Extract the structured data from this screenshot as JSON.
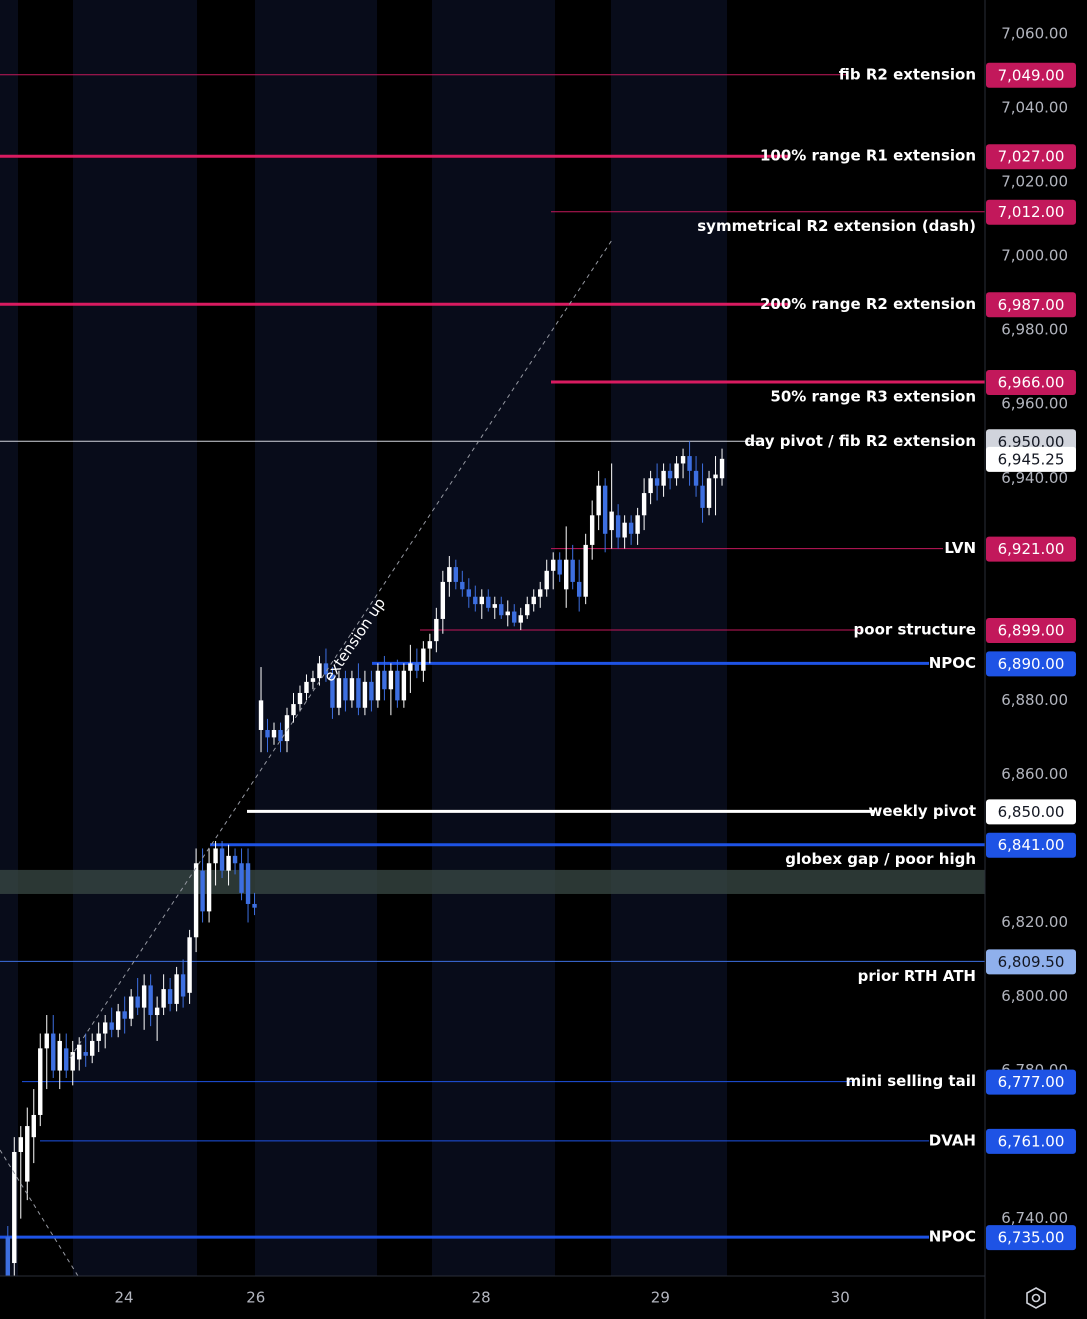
{
  "chart_data": {
    "type": "candlestick",
    "up_color": "#ffffff",
    "down_color": "#3d6fe0",
    "ylim": [
      6724.5,
      7069.2
    ],
    "yticks": [
      {
        "value": 7060,
        "label": "7,060.00"
      },
      {
        "value": 7040,
        "label": "7,040.00"
      },
      {
        "value": 7020,
        "label": "7,020.00"
      },
      {
        "value": 7000,
        "label": "7,000.00"
      },
      {
        "value": 6980,
        "label": "6,980.00"
      },
      {
        "value": 6960,
        "label": "6,960.00"
      },
      {
        "value": 6940,
        "label": "6,940.00"
      },
      {
        "value": 6880,
        "label": "6,880.00"
      },
      {
        "value": 6860,
        "label": "6,860.00"
      },
      {
        "value": 6820,
        "label": "6,820.00"
      },
      {
        "value": 6800,
        "label": "6,800.00"
      },
      {
        "value": 6780,
        "label": "6,780.00"
      },
      {
        "value": 6740,
        "label": "6,740.00"
      }
    ],
    "xlim": [
      -1.2,
      150.5
    ],
    "xticks": [
      {
        "value": 17.9,
        "label": "24"
      },
      {
        "value": 38.2,
        "label": "26"
      },
      {
        "value": 72.9,
        "label": "28"
      },
      {
        "value": 100.5,
        "label": "29"
      },
      {
        "value": 128.2,
        "label": "30"
      }
    ],
    "levels": [
      {
        "name": "fib R2 extension",
        "value": 7049,
        "value_label": "7,049.00",
        "color": "#c2185b",
        "label_color": "#c2185b"
      },
      {
        "name": "100% range R1 extension",
        "value": 7027,
        "value_label": "7,027.00",
        "color": "#d81b60",
        "label_color": "#c2185b"
      },
      {
        "name": "symmetrical R2 extension (dash)",
        "value": 7012,
        "value_label": "7,012.00",
        "color": "#c2185b",
        "label_color": "#c2185b"
      },
      {
        "name": "200% range R2 extension",
        "value": 6987,
        "value_label": "6,987.00",
        "color": "#d81b60",
        "label_color": "#c2185b"
      },
      {
        "name": "50% range R3 extension",
        "value": 6966,
        "value_label": "6,966.00",
        "color": "#d81b60",
        "label_color": "#c2185b"
      },
      {
        "name": "day pivot / fib R2 extension",
        "value": 6950,
        "value_label": "6,950.00",
        "color": "#d1d4dc",
        "label_color": "#d1d4dc"
      },
      {
        "name": "LVN",
        "value": 6921,
        "value_label": "6,921.00",
        "color": "#c2185b",
        "label_color": "#c2185b"
      },
      {
        "name": "poor structure",
        "value": 6899,
        "value_label": "6,899.00",
        "color": "#c2185b",
        "label_color": "#c2185b"
      },
      {
        "name": "NPOC",
        "value": 6890,
        "value_label": "6,890.00",
        "color": "#1e53e5",
        "label_color": "#1e53e5"
      },
      {
        "name": "weekly pivot",
        "value": 6850,
        "value_label": "6,850.00",
        "color": "#ffffff",
        "label_color": "#ffffff"
      },
      {
        "name": "globex gap / poor high",
        "value": 6841,
        "value_label": "6,841.00",
        "color": "#1e53e5",
        "label_color": "#1e53e5"
      },
      {
        "name": "prior RTH ATH",
        "value": 6809.5,
        "value_label": "6,809.50",
        "color": "#3d6fe0",
        "label_color": "#8fb0ec"
      },
      {
        "name": "mini selling tail",
        "value": 6777,
        "value_label": "6,777.00",
        "color": "#1e53e5",
        "label_color": "#1e53e5"
      },
      {
        "name": "DVAH",
        "value": 6761,
        "value_label": "6,761.00",
        "color": "#1e53e5",
        "label_color": "#1e53e5"
      },
      {
        "name": "NPOC",
        "value": 6735,
        "value_label": "6,735.00",
        "color": "#1e53e5",
        "label_color": "#1e53e5"
      }
    ],
    "last_price": 6945.25,
    "last_price_label": "6,945.25",
    "zone": [
      6827.7,
      6834.2
    ],
    "zone_color": "#3a4a46",
    "annotation": "extension up",
    "ohlc": [
      [
        6735,
        6738,
        6722,
        6724
      ],
      [
        6728,
        6762,
        6722,
        6758
      ],
      [
        6758,
        6765,
        6740,
        6762
      ],
      [
        6750,
        6770,
        6745,
        6765
      ],
      [
        6762,
        6775,
        6755,
        6768
      ],
      [
        6768,
        6790,
        6765,
        6786
      ],
      [
        6786,
        6795,
        6775,
        6790
      ],
      [
        6790,
        6795,
        6778,
        6780
      ],
      [
        6780,
        6790,
        6775,
        6788
      ],
      [
        6786,
        6790,
        6778,
        6780
      ],
      [
        6780,
        6788,
        6776,
        6785
      ],
      [
        6783,
        6789,
        6780,
        6787
      ],
      [
        6785,
        6790,
        6781,
        6784
      ],
      [
        6784,
        6790,
        6782,
        6788
      ],
      [
        6788,
        6793,
        6785,
        6790
      ],
      [
        6790,
        6795,
        6786,
        6793
      ],
      [
        6793,
        6797,
        6789,
        6791
      ],
      [
        6791,
        6798,
        6789,
        6796
      ],
      [
        6796,
        6800,
        6790,
        6794
      ],
      [
        6794,
        6802,
        6792,
        6800
      ],
      [
        6800,
        6805,
        6795,
        6797
      ],
      [
        6797,
        6806,
        6791,
        6803
      ],
      [
        6803,
        6806,
        6792,
        6795
      ],
      [
        6795,
        6800,
        6788,
        6797
      ],
      [
        6797,
        6806,
        6795,
        6802
      ],
      [
        6802,
        6805,
        6796,
        6798
      ],
      [
        6798,
        6808,
        6796,
        6806
      ],
      [
        6806,
        6810,
        6797,
        6800
      ],
      [
        6801,
        6818,
        6798,
        6816
      ],
      [
        6816,
        6840,
        6812,
        6836
      ],
      [
        6834,
        6840,
        6820,
        6823
      ],
      [
        6823,
        6840,
        6820,
        6836
      ],
      [
        6836,
        6842,
        6830,
        6840
      ],
      [
        6840,
        6842,
        6832,
        6834
      ],
      [
        6834,
        6841,
        6830,
        6838
      ],
      [
        6838,
        6840,
        6833,
        6836
      ],
      [
        6836,
        6840,
        6826,
        6828
      ],
      [
        6836,
        6840,
        6820,
        6825
      ],
      [
        6825,
        6828,
        6822,
        6824
      ],
      [
        6872,
        6889,
        6866,
        6880
      ],
      [
        6872,
        6875,
        6866,
        6870
      ],
      [
        6870,
        6874,
        6868,
        6872
      ],
      [
        6872,
        6874,
        6866,
        6869
      ],
      [
        6869,
        6878,
        6866,
        6876
      ],
      [
        6876,
        6882,
        6874,
        6879
      ],
      [
        6879,
        6884,
        6877,
        6882
      ],
      [
        6882,
        6887,
        6880,
        6885
      ],
      [
        6885,
        6888,
        6883,
        6886
      ],
      [
        6886,
        6892,
        6884,
        6890
      ],
      [
        6890,
        6894,
        6885,
        6887
      ],
      [
        6887,
        6889,
        6875,
        6878
      ],
      [
        6878,
        6888,
        6876,
        6886
      ],
      [
        6886,
        6888,
        6877,
        6880
      ],
      [
        6880,
        6888,
        6878,
        6886
      ],
      [
        6886,
        6890,
        6876,
        6878
      ],
      [
        6878,
        6888,
        6876,
        6885
      ],
      [
        6885,
        6888,
        6877,
        6880
      ],
      [
        6880,
        6890,
        6878,
        6888
      ],
      [
        6888,
        6892,
        6880,
        6883
      ],
      [
        6883,
        6890,
        6876,
        6888
      ],
      [
        6888,
        6891,
        6878,
        6880
      ],
      [
        6880,
        6890,
        6878,
        6888
      ],
      [
        6888,
        6895,
        6882,
        6890
      ],
      [
        6890,
        6894,
        6886,
        6888
      ],
      [
        6888,
        6896,
        6885,
        6894
      ],
      [
        6894,
        6898,
        6890,
        6896
      ],
      [
        6896,
        6905,
        6893,
        6902
      ],
      [
        6902,
        6915,
        6898,
        6912
      ],
      [
        6912,
        6919,
        6908,
        6916
      ],
      [
        6916,
        6918,
        6910,
        6912
      ],
      [
        6912,
        6915,
        6908,
        6910
      ],
      [
        6910,
        6913,
        6905,
        6908
      ],
      [
        6908,
        6911,
        6904,
        6906
      ],
      [
        6906,
        6910,
        6902,
        6908
      ],
      [
        6908,
        6910,
        6904,
        6905
      ],
      [
        6905,
        6908,
        6902,
        6906
      ],
      [
        6906,
        6908,
        6902,
        6903
      ],
      [
        6903,
        6907,
        6900,
        6904
      ],
      [
        6904,
        6906,
        6900,
        6901
      ],
      [
        6901,
        6905,
        6899,
        6903
      ],
      [
        6903,
        6908,
        6902,
        6906
      ],
      [
        6906,
        6910,
        6904,
        6908
      ],
      [
        6908,
        6912,
        6905,
        6910
      ],
      [
        6910,
        6918,
        6908,
        6915
      ],
      [
        6915,
        6920,
        6910,
        6918
      ],
      [
        6918,
        6920,
        6912,
        6914
      ],
      [
        6910,
        6927,
        6905,
        6918
      ],
      [
        6918,
        6922,
        6910,
        6912
      ],
      [
        6912,
        6918,
        6904,
        6908
      ],
      [
        6908,
        6925,
        6906,
        6922
      ],
      [
        6922,
        6934,
        6918,
        6930
      ],
      [
        6930,
        6942,
        6926,
        6938
      ],
      [
        6938,
        6940,
        6920,
        6925
      ],
      [
        6926,
        6944,
        6921,
        6931
      ],
      [
        6930,
        6933,
        6921,
        6924
      ],
      [
        6924,
        6930,
        6921,
        6928
      ],
      [
        6928,
        6930,
        6922,
        6925
      ],
      [
        6925,
        6932,
        6922,
        6930
      ],
      [
        6930,
        6940,
        6926,
        6936
      ],
      [
        6936,
        6942,
        6933,
        6940
      ],
      [
        6940,
        6944,
        6934,
        6938
      ],
      [
        6938,
        6944,
        6935,
        6942
      ],
      [
        6942,
        6944,
        6937,
        6940
      ],
      [
        6940,
        6946,
        6938,
        6944
      ],
      [
        6944,
        6948,
        6940,
        6946
      ],
      [
        6946,
        6950,
        6938,
        6942
      ],
      [
        6942,
        6946,
        6935,
        6938
      ],
      [
        6938,
        6944,
        6928,
        6932
      ],
      [
        6932,
        6942,
        6930,
        6940
      ],
      [
        6940,
        6946,
        6930,
        6941
      ],
      [
        6940,
        6948,
        6938,
        6945.25
      ]
    ]
  }
}
